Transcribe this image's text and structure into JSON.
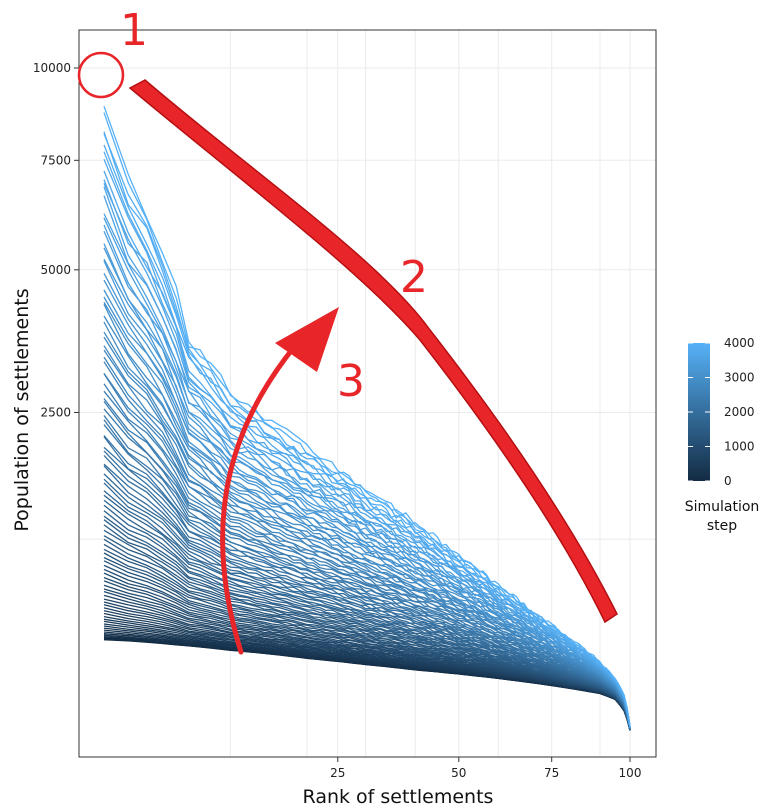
{
  "chart_data": {
    "type": "line",
    "title": "",
    "xlabel": "Rank of settlements",
    "ylabel": "Population of settlements",
    "x_scale": "sqrt",
    "y_scale": "sqrt",
    "xlim": [
      0,
      100
    ],
    "ylim": [
      0,
      11000
    ],
    "x_ticks": [
      {
        "value": 25,
        "label": "25"
      },
      {
        "value": 50,
        "label": "50"
      },
      {
        "value": 75,
        "label": "75"
      },
      {
        "value": 100,
        "label": "100"
      }
    ],
    "y_ticks": [
      {
        "value": 2500,
        "label": "2500"
      },
      {
        "value": 5000,
        "label": "5000"
      },
      {
        "value": 7500,
        "label": "7500"
      },
      {
        "value": 10000,
        "label": "10000"
      }
    ],
    "grid": true,
    "series_description": "One rank-size curve per simulation step (steps 0 to 4000), colored by step",
    "color_scale": {
      "title_line1": "Simulation",
      "title_line2": "step",
      "low_color": "#132b43",
      "high_color": "#56b1f7",
      "min": 0,
      "max": 4000,
      "ticks": [
        {
          "value": 0,
          "label": "0"
        },
        {
          "value": 1000,
          "label": "1000"
        },
        {
          "value": 2000,
          "label": "2000"
        },
        {
          "value": 3000,
          "label": "3000"
        },
        {
          "value": 4000,
          "label": "4000"
        }
      ]
    },
    "curves": {
      "count": 100,
      "first": {
        "step": 0,
        "x": [
          1,
          5,
          10,
          20,
          30,
          40,
          50,
          60,
          70,
          80,
          90,
          95,
          98,
          100
        ],
        "y": [
          290,
          265,
          240,
          205,
          180,
          160,
          145,
          130,
          115,
          100,
          85,
          70,
          45,
          15
        ]
      },
      "last": {
        "step": 4000,
        "x": [
          1,
          2,
          4,
          6,
          10,
          15,
          20,
          30,
          40,
          50,
          60,
          70,
          80,
          90,
          95,
          98,
          100
        ],
        "y": [
          8800,
          7000,
          5400,
          3700,
          2800,
          2350,
          2000,
          1500,
          1150,
          850,
          620,
          440,
          300,
          190,
          130,
          80,
          20
        ]
      }
    },
    "annotations": {
      "color": "#e8262a",
      "labels": [
        {
          "id": "1",
          "text": "1"
        },
        {
          "id": "2",
          "text": "2"
        },
        {
          "id": "3",
          "text": "3"
        }
      ]
    }
  }
}
